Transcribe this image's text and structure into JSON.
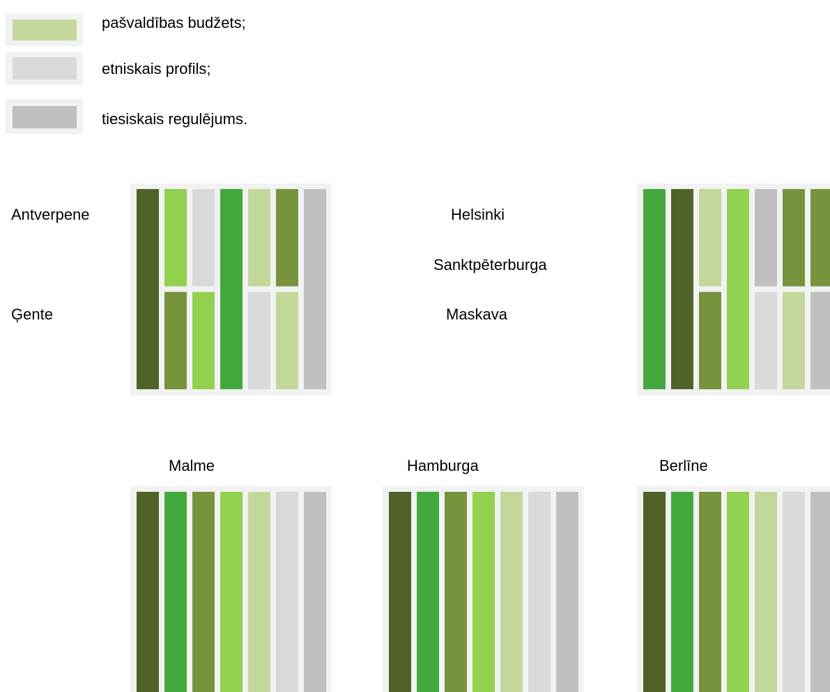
{
  "legend": {
    "items": [
      "pašvaldības budžets;",
      "etniskais profils;",
      "tiesiskais regulējums."
    ]
  },
  "cities": {
    "antwerp": "Antverpene",
    "ghent": "Ģente",
    "helsinki": "Helsinki",
    "stpetersburg": "Sanktpēterburga",
    "moscow": "Maskava",
    "malmo": "Malme",
    "hamburg": "Hamburga",
    "berlin": "Berlīne"
  }
}
